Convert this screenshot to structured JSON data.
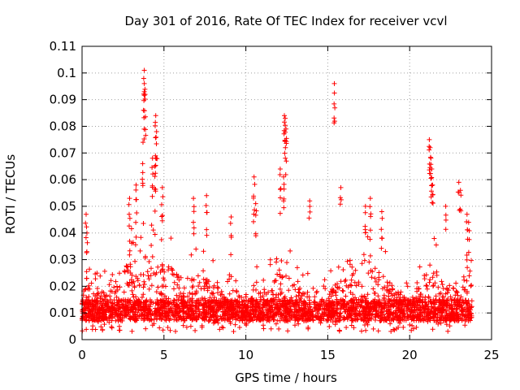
{
  "chart_data": {
    "type": "scatter",
    "title": "Day 301 of 2016, Rate Of TEC Index for receiver vcvl",
    "xlabel": "GPS time / hours",
    "ylabel": "ROTI / TECUs",
    "xlim": [
      0,
      25
    ],
    "ylim": [
      0,
      0.11
    ],
    "xticks": [
      "0",
      "5",
      "10",
      "15",
      "20",
      "25"
    ],
    "yticks": [
      "0",
      "0.01",
      "0.02",
      "0.03",
      "0.04",
      "0.05",
      "0.06",
      "0.07",
      "0.08",
      "0.09",
      "0.1",
      "0.11"
    ],
    "grid": true,
    "marker": "+",
    "color": "#ff0000",
    "x_data_range": [
      0,
      23.8
    ],
    "series": [
      {
        "name": "ROTI",
        "envelope": [
          [
            0.0,
            0.026
          ],
          [
            0.5,
            0.032
          ],
          [
            1.0,
            0.028
          ],
          [
            1.5,
            0.026
          ],
          [
            2.0,
            0.03
          ],
          [
            2.5,
            0.04
          ],
          [
            3.0,
            0.042
          ],
          [
            3.5,
            0.048
          ],
          [
            4.0,
            0.05
          ],
          [
            4.5,
            0.046
          ],
          [
            5.0,
            0.044
          ],
          [
            5.5,
            0.038
          ],
          [
            6.0,
            0.034
          ],
          [
            6.5,
            0.032
          ],
          [
            7.0,
            0.036
          ],
          [
            7.5,
            0.034
          ],
          [
            8.0,
            0.03
          ],
          [
            8.5,
            0.026
          ],
          [
            9.0,
            0.026
          ],
          [
            9.5,
            0.024
          ],
          [
            10.0,
            0.024
          ],
          [
            10.5,
            0.03
          ],
          [
            11.0,
            0.026
          ],
          [
            11.5,
            0.03
          ],
          [
            12.0,
            0.036
          ],
          [
            12.5,
            0.04
          ],
          [
            13.0,
            0.03
          ],
          [
            13.5,
            0.026
          ],
          [
            14.0,
            0.03
          ],
          [
            14.5,
            0.024
          ],
          [
            15.0,
            0.024
          ],
          [
            15.5,
            0.03
          ],
          [
            16.0,
            0.034
          ],
          [
            16.5,
            0.036
          ],
          [
            17.0,
            0.04
          ],
          [
            17.5,
            0.046
          ],
          [
            18.0,
            0.04
          ],
          [
            18.5,
            0.034
          ],
          [
            19.0,
            0.028
          ],
          [
            19.5,
            0.026
          ],
          [
            20.0,
            0.024
          ],
          [
            20.5,
            0.03
          ],
          [
            21.0,
            0.036
          ],
          [
            21.5,
            0.04
          ],
          [
            22.0,
            0.03
          ],
          [
            22.5,
            0.026
          ],
          [
            23.0,
            0.034
          ],
          [
            23.5,
            0.04
          ],
          [
            23.8,
            0.03
          ]
        ],
        "baseline": [
          0.007,
          0.015
        ],
        "spikes": [
          {
            "x": 0.25,
            "y": 0.047
          },
          {
            "x": 0.3,
            "y": 0.04
          },
          {
            "x": 2.9,
            "y": 0.053
          },
          {
            "x": 3.3,
            "y": 0.058
          },
          {
            "x": 3.7,
            "y": 0.066
          },
          {
            "x": 3.75,
            "y": 0.086
          },
          {
            "x": 3.8,
            "y": 0.096
          },
          {
            "x": 3.8,
            "y": 0.101
          },
          {
            "x": 3.85,
            "y": 0.092
          },
          {
            "x": 4.3,
            "y": 0.068
          },
          {
            "x": 4.45,
            "y": 0.065
          },
          {
            "x": 4.5,
            "y": 0.084
          },
          {
            "x": 4.55,
            "y": 0.078
          },
          {
            "x": 4.9,
            "y": 0.057
          },
          {
            "x": 6.8,
            "y": 0.053
          },
          {
            "x": 7.6,
            "y": 0.054
          },
          {
            "x": 9.1,
            "y": 0.046
          },
          {
            "x": 10.5,
            "y": 0.061
          },
          {
            "x": 10.6,
            "y": 0.051
          },
          {
            "x": 12.1,
            "y": 0.064
          },
          {
            "x": 12.35,
            "y": 0.084
          },
          {
            "x": 12.4,
            "y": 0.083
          },
          {
            "x": 12.45,
            "y": 0.079
          },
          {
            "x": 12.3,
            "y": 0.061
          },
          {
            "x": 13.9,
            "y": 0.052
          },
          {
            "x": 15.4,
            "y": 0.096
          },
          {
            "x": 15.8,
            "y": 0.057
          },
          {
            "x": 17.3,
            "y": 0.05
          },
          {
            "x": 17.6,
            "y": 0.053
          },
          {
            "x": 18.3,
            "y": 0.048
          },
          {
            "x": 21.2,
            "y": 0.075
          },
          {
            "x": 21.25,
            "y": 0.072
          },
          {
            "x": 21.3,
            "y": 0.068
          },
          {
            "x": 21.35,
            "y": 0.064
          },
          {
            "x": 21.4,
            "y": 0.058
          },
          {
            "x": 22.2,
            "y": 0.05
          },
          {
            "x": 23.0,
            "y": 0.059
          },
          {
            "x": 23.1,
            "y": 0.056
          },
          {
            "x": 23.5,
            "y": 0.047
          },
          {
            "x": 23.6,
            "y": 0.044
          }
        ]
      }
    ]
  }
}
